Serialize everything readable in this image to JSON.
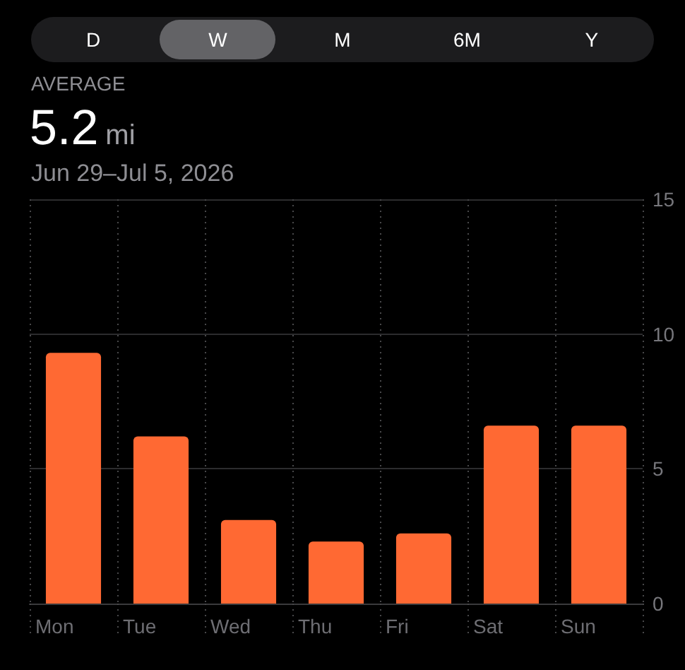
{
  "chart_data": {
    "type": "bar",
    "title": "AVERAGE",
    "subtitle": "Jun 29–Jul 5, 2026",
    "annotations": [
      "D",
      "W",
      "M",
      "6M",
      "Y",
      "5.2",
      "mi"
    ],
    "categories": [
      "Mon",
      "Tue",
      "Wed",
      "Thu",
      "Fri",
      "Sat",
      "Sun"
    ],
    "values": [
      9.3,
      6.2,
      3.1,
      2.3,
      2.6,
      6.6,
      6.6
    ],
    "color": "#ff6933",
    "ylim": [
      0,
      15
    ],
    "yticks": [
      0,
      5,
      10,
      15
    ],
    "grid": true
  }
}
